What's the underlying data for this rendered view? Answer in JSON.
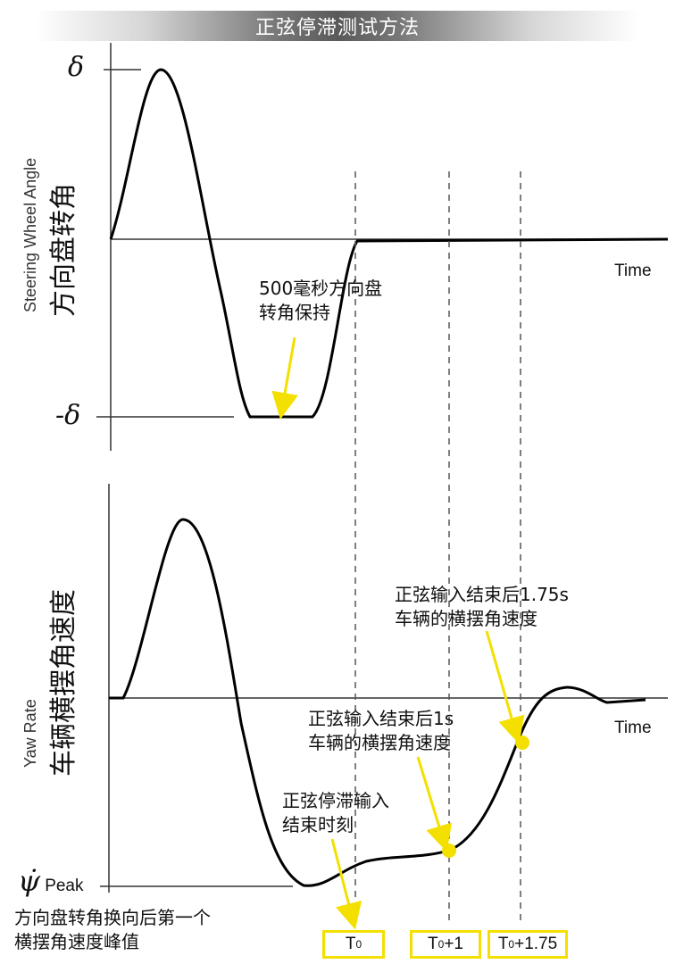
{
  "title": "正弦停滞测试方法",
  "top_panel": {
    "y_label_en": "Steering Wheel Angle",
    "y_label_zh": "方向盘转角",
    "delta_pos": "δ",
    "delta_neg": "-δ",
    "time_label": "Time",
    "hold_annotation": [
      "500毫秒方向盘",
      "转角保持"
    ]
  },
  "bottom_panel": {
    "y_label_en": "Yaw Rate",
    "y_label_zh": "车辆横摆角速度",
    "time_label": "Time",
    "psi_symbol": "ψ̇",
    "peak_label": "Peak",
    "annotation_175": [
      "正弦输入结束后1.75s",
      "车辆的横摆角速度"
    ],
    "annotation_1": [
      "正弦输入结束后1s",
      "车辆的横摆角速度"
    ],
    "annotation_end": [
      "正弦停滞输入",
      "结束时刻"
    ],
    "annotation_peak": [
      "方向盘转角换向后第一个",
      "横摆角速度峰值"
    ]
  },
  "time_marks": [
    {
      "base": "T",
      "sub": "0",
      "suffix": ""
    },
    {
      "base": "T",
      "sub": "0",
      "suffix": "+1"
    },
    {
      "base": "T",
      "sub": "0",
      "suffix": "+1.75"
    }
  ],
  "colors": {
    "highlight": "#f3e000",
    "curve": "#000000",
    "axis": "#333333"
  }
}
